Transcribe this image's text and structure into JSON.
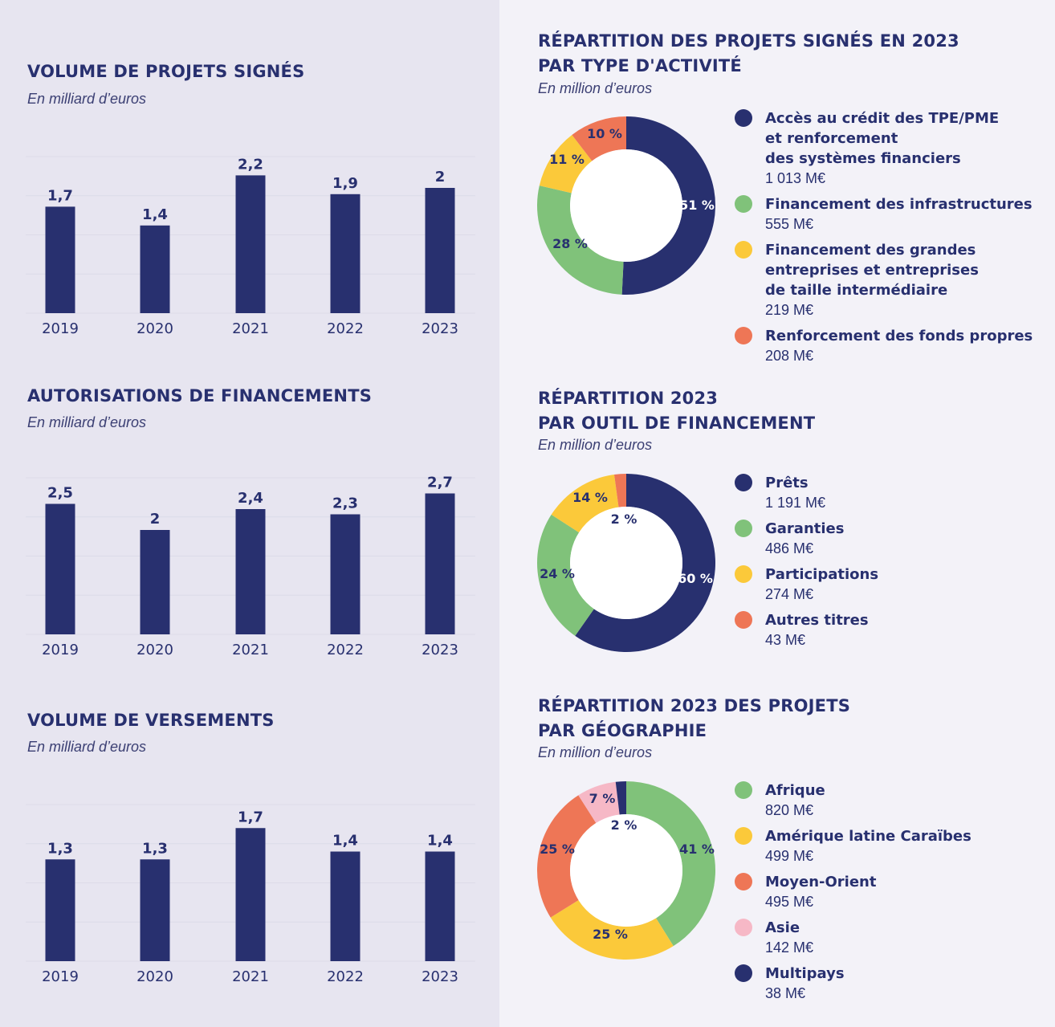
{
  "colors": {
    "navy": "#28306f",
    "green": "#80c27a",
    "yellow": "#fbc93a",
    "orange": "#ee7656",
    "pink": "#f6b8c6",
    "gridline": "#dcdbe8",
    "left_background": "#e7e5f0",
    "right_background": "#f3f2f8"
  },
  "chart_data": [
    {
      "id": "projets-signes",
      "type": "bar",
      "title": "VOLUME DE PROJETS SIGNÉS",
      "subtitle": "En milliard d’euros",
      "categories": [
        "2019",
        "2020",
        "2021",
        "2022",
        "2023"
      ],
      "values": [
        1.7,
        1.4,
        2.2,
        1.9,
        2.0
      ],
      "value_labels": [
        "1,7",
        "1,4",
        "2,2",
        "1,9",
        "2"
      ],
      "ylim": [
        0,
        2.5
      ],
      "grid": true,
      "color": "#28306f"
    },
    {
      "id": "autorisations",
      "type": "bar",
      "title": "AUTORISATIONS DE FINANCEMENTS",
      "subtitle": "En milliard d’euros",
      "categories": [
        "2019",
        "2020",
        "2021",
        "2022",
        "2023"
      ],
      "values": [
        2.5,
        2.0,
        2.4,
        2.3,
        2.7
      ],
      "value_labels": [
        "2,5",
        "2",
        "2,4",
        "2,3",
        "2,7"
      ],
      "ylim": [
        0,
        3.0
      ],
      "grid": true,
      "color": "#28306f"
    },
    {
      "id": "versements",
      "type": "bar",
      "title": "VOLUME DE VERSEMENTS",
      "subtitle": "En milliard d’euros",
      "categories": [
        "2019",
        "2020",
        "2021",
        "2022",
        "2023"
      ],
      "values": [
        1.3,
        1.3,
        1.7,
        1.4,
        1.4
      ],
      "value_labels": [
        "1,3",
        "1,3",
        "1,7",
        "1,4",
        "1,4"
      ],
      "ylim": [
        0,
        2.0
      ],
      "grid": true,
      "color": "#28306f"
    },
    {
      "id": "type-activite",
      "type": "pie",
      "donut": true,
      "title": "RÉPARTITION DES PROJETS SIGNÉS EN 2023\nPAR TYPE D'ACTIVITÉ",
      "subtitle": "En million d’euros",
      "slices": [
        {
          "label": "Accès au crédit des TPE/PME\net renforcement\ndes systèmes financiers",
          "value": 1013,
          "value_label": "1 013 M€",
          "percent": 51,
          "percent_label": "51 %",
          "color": "#28306f",
          "label_color": "#ffffff"
        },
        {
          "label": "Financement des infrastructures",
          "value": 555,
          "value_label": "555 M€",
          "percent": 28,
          "percent_label": "28 %",
          "color": "#80c27a",
          "label_color": "#28306f"
        },
        {
          "label": "Financement des grandes\nentreprises et entreprises\nde taille intermédiaire",
          "value": 219,
          "value_label": "219 M€",
          "percent": 11,
          "percent_label": "11 %",
          "color": "#fbc93a",
          "label_color": "#28306f"
        },
        {
          "label": "Renforcement des fonds propres",
          "value": 208,
          "value_label": "208 M€",
          "percent": 10,
          "percent_label": "10 %",
          "color": "#ee7656",
          "label_color": "#28306f"
        }
      ]
    },
    {
      "id": "outil-financement",
      "type": "pie",
      "donut": true,
      "title": "RÉPARTITION 2023\nPAR OUTIL DE FINANCEMENT",
      "subtitle": "En million d’euros",
      "slices": [
        {
          "label": "Prêts",
          "value": 1191,
          "value_label": "1 191 M€",
          "percent": 60,
          "percent_label": "60 %",
          "color": "#28306f",
          "label_color": "#ffffff"
        },
        {
          "label": "Garanties",
          "value": 486,
          "value_label": "486 M€",
          "percent": 24,
          "percent_label": "24 %",
          "color": "#80c27a",
          "label_color": "#28306f"
        },
        {
          "label": "Participations",
          "value": 274,
          "value_label": "274 M€",
          "percent": 14,
          "percent_label": "14 %",
          "color": "#fbc93a",
          "label_color": "#28306f"
        },
        {
          "label": "Autres titres",
          "value": 43,
          "value_label": "43 M€",
          "percent": 2,
          "percent_label": "2 %",
          "color": "#ee7656",
          "label_color": "#28306f"
        }
      ]
    },
    {
      "id": "geographie",
      "type": "pie",
      "donut": true,
      "title": "RÉPARTITION 2023 DES PROJETS\nPAR GÉOGRAPHIE",
      "subtitle": "En million d’euros",
      "slices": [
        {
          "label": "Afrique",
          "value": 820,
          "value_label": "820 M€",
          "percent": 41,
          "percent_label": "41 %",
          "color": "#80c27a",
          "label_color": "#28306f"
        },
        {
          "label": "Amérique latine Caraïbes",
          "value": 499,
          "value_label": "499 M€",
          "percent": 25,
          "percent_label": "25 %",
          "color": "#fbc93a",
          "label_color": "#28306f"
        },
        {
          "label": "Moyen-Orient",
          "value": 495,
          "value_label": "495 M€",
          "percent": 25,
          "percent_label": "25 %",
          "color": "#ee7656",
          "label_color": "#28306f"
        },
        {
          "label": "Asie",
          "value": 142,
          "value_label": "142 M€",
          "percent": 7,
          "percent_label": "7 %",
          "color": "#f6b8c6",
          "label_color": "#28306f"
        },
        {
          "label": "Multipays",
          "value": 38,
          "value_label": "38 M€",
          "percent": 2,
          "percent_label": "2 %",
          "color": "#28306f",
          "label_color": "#28306f"
        }
      ]
    }
  ]
}
